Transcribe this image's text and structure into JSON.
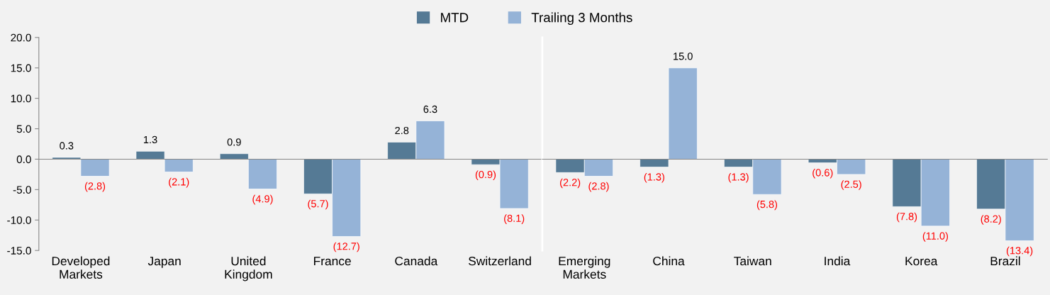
{
  "chart_data": [
    {
      "type": "bar",
      "categories": [
        "Developed\nMarkets",
        "Japan",
        "United\nKingdom",
        "France",
        "Canada",
        "Switzerland"
      ],
      "series": [
        {
          "name": "MTD",
          "color": "#557a95",
          "values": [
            0.3,
            1.3,
            0.9,
            -5.7,
            2.8,
            -0.9
          ],
          "value_labels": [
            "0.3",
            "1.3",
            "0.9",
            "(5.7)",
            "2.8",
            "(0.9)"
          ]
        },
        {
          "name": "Trailing 3 Months",
          "color": "#95b3d7",
          "values": [
            -2.8,
            -2.1,
            -4.9,
            -12.7,
            6.3,
            -8.1
          ],
          "value_labels": [
            "(2.8)",
            "(2.1)",
            "(4.9)",
            "(12.7)",
            "6.3",
            "(8.1)"
          ]
        }
      ],
      "ylim": [
        -15,
        20
      ],
      "yticks": [
        {
          "value": -15,
          "label": "-15.0"
        },
        {
          "value": -10,
          "label": "-10.0"
        },
        {
          "value": -5,
          "label": "-5.0"
        },
        {
          "value": 0,
          "label": "0.0"
        },
        {
          "value": 5,
          "label": "5.0"
        },
        {
          "value": 10,
          "label": "10.0"
        },
        {
          "value": 15,
          "label": "15.0"
        },
        {
          "value": 20,
          "label": "20.0"
        }
      ],
      "legend": "top"
    },
    {
      "type": "bar",
      "categories": [
        "Emerging\nMarkets",
        "China",
        "Taiwan",
        "India",
        "Korea",
        "Brazil"
      ],
      "series": [
        {
          "color": "#557a95",
          "values": [
            -2.2,
            -1.3,
            -1.3,
            -0.6,
            -7.8,
            -8.2
          ],
          "value_labels": [
            "(2.2)",
            "(1.3)",
            "(1.3)",
            "(0.6)",
            "(7.8)",
            "(8.2)"
          ]
        },
        {
          "color": "#95b3d7",
          "values": [
            -2.8,
            15.0,
            -5.8,
            -2.5,
            -11.0,
            -13.4
          ],
          "value_labels": [
            "(2.8)",
            "15.0",
            "(5.8)",
            "(2.5)",
            "(11.0)",
            "(13.4)"
          ]
        }
      ],
      "ylim": [
        -15,
        20
      ],
      "tick_labels": "x"
    }
  ]
}
